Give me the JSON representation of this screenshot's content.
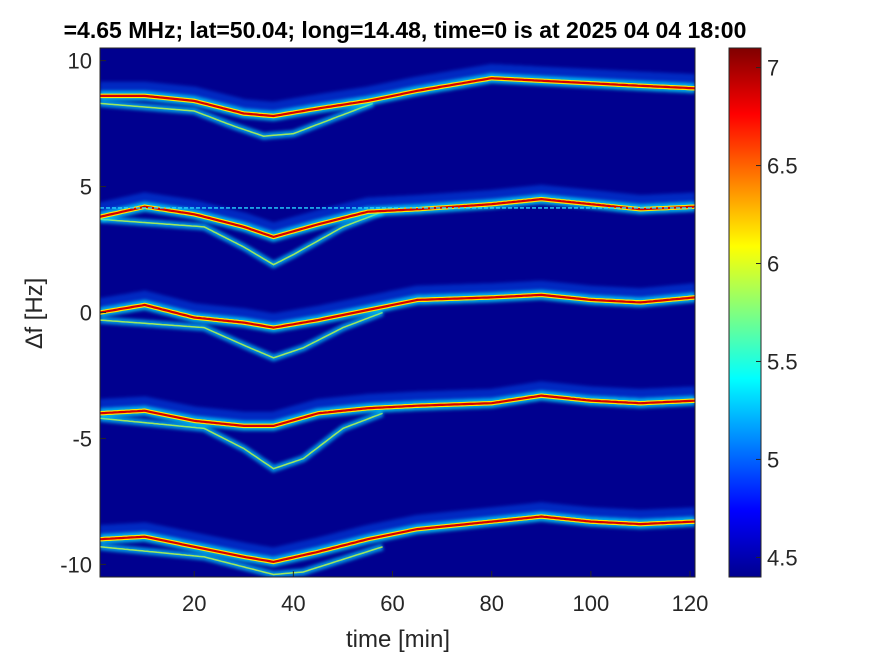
{
  "chart_data": {
    "type": "heatmap",
    "title": "=4.65 MHz;  lat=50.04; long=14.48, time=0 is at 2025 04 04 18:00",
    "xlabel": "time [min]",
    "ylabel": "∆f [Hz]",
    "xlim": [
      1,
      121
    ],
    "ylim": [
      -10.5,
      10.5
    ],
    "x_ticks": [
      20,
      40,
      60,
      80,
      100,
      120
    ],
    "x_tick_labels": [
      "20",
      "40",
      "60",
      "80",
      "100",
      "120"
    ],
    "y_ticks": [
      -10,
      -5,
      0,
      5,
      10
    ],
    "y_tick_labels": [
      "-10",
      "-5",
      "0",
      "5",
      "10"
    ],
    "colorbar": {
      "colormap": "jet",
      "clim": [
        4.4,
        7.1
      ],
      "ticks": [
        4.5,
        5,
        5.5,
        6,
        6.5,
        7
      ],
      "tick_labels": [
        "4.5",
        "5",
        "5.5",
        "6",
        "6.5",
        "7"
      ]
    },
    "background_color": "#00008f",
    "traces": [
      {
        "name": "",
        "time": [
          1,
          10,
          20,
          30,
          36,
          45,
          55,
          65,
          80,
          90,
          100,
          110,
          121
        ],
        "df": [
          8.6,
          8.6,
          8.4,
          7.9,
          7.8,
          8.1,
          8.4,
          8.8,
          9.3,
          9.2,
          9.1,
          9.0,
          8.9
        ]
      },
      {
        "name": "",
        "time": [
          1,
          10,
          20,
          30,
          36,
          45,
          55,
          65,
          80,
          90,
          100,
          110,
          121
        ],
        "df": [
          3.8,
          4.2,
          3.9,
          3.4,
          3.0,
          3.5,
          4.0,
          4.1,
          4.3,
          4.5,
          4.3,
          4.1,
          4.2
        ]
      },
      {
        "name": "",
        "time": [
          1,
          10,
          20,
          30,
          36,
          45,
          55,
          65,
          80,
          90,
          100,
          110,
          121
        ],
        "df": [
          0.0,
          0.3,
          -0.2,
          -0.4,
          -0.6,
          -0.3,
          0.1,
          0.5,
          0.6,
          0.7,
          0.5,
          0.4,
          0.6
        ]
      },
      {
        "name": "",
        "time": [
          1,
          10,
          20,
          30,
          36,
          45,
          55,
          65,
          80,
          90,
          100,
          110,
          121
        ],
        "df": [
          -4.0,
          -3.9,
          -4.3,
          -4.5,
          -4.5,
          -4.0,
          -3.8,
          -3.7,
          -3.6,
          -3.3,
          -3.5,
          -3.6,
          -3.5
        ]
      },
      {
        "name": "",
        "time": [
          1,
          10,
          20,
          30,
          36,
          45,
          55,
          65,
          80,
          90,
          100,
          110,
          121
        ],
        "df": [
          -9.0,
          -8.9,
          -9.3,
          -9.7,
          -9.9,
          -9.5,
          -9.0,
          -8.6,
          -8.3,
          -8.1,
          -8.3,
          -8.4,
          -8.3
        ]
      }
    ],
    "horizontal_line": {
      "df": 4.15
    },
    "dip_traces": [
      {
        "name": "",
        "time": [
          1,
          20,
          28,
          34,
          40,
          48,
          56
        ],
        "df": [
          8.3,
          8.0,
          7.4,
          7.0,
          7.1,
          7.7,
          8.3
        ]
      },
      {
        "name": "",
        "time": [
          1,
          22,
          30,
          36,
          40,
          50,
          58
        ],
        "df": [
          3.7,
          3.4,
          2.6,
          1.9,
          2.3,
          3.4,
          4.0
        ]
      },
      {
        "name": "",
        "time": [
          1,
          22,
          30,
          36,
          42,
          50,
          58
        ],
        "df": [
          -0.3,
          -0.6,
          -1.3,
          -1.8,
          -1.4,
          -0.6,
          0.0
        ]
      },
      {
        "name": "",
        "time": [
          1,
          22,
          30,
          36,
          42,
          50,
          58
        ],
        "df": [
          -4.2,
          -4.6,
          -5.4,
          -6.2,
          -5.8,
          -4.6,
          -4.0
        ]
      },
      {
        "name": "",
        "time": [
          1,
          22,
          30,
          36,
          42,
          50,
          58
        ],
        "df": [
          -9.3,
          -9.7,
          -10.1,
          -10.4,
          -10.3,
          -9.8,
          -9.3
        ]
      }
    ]
  }
}
